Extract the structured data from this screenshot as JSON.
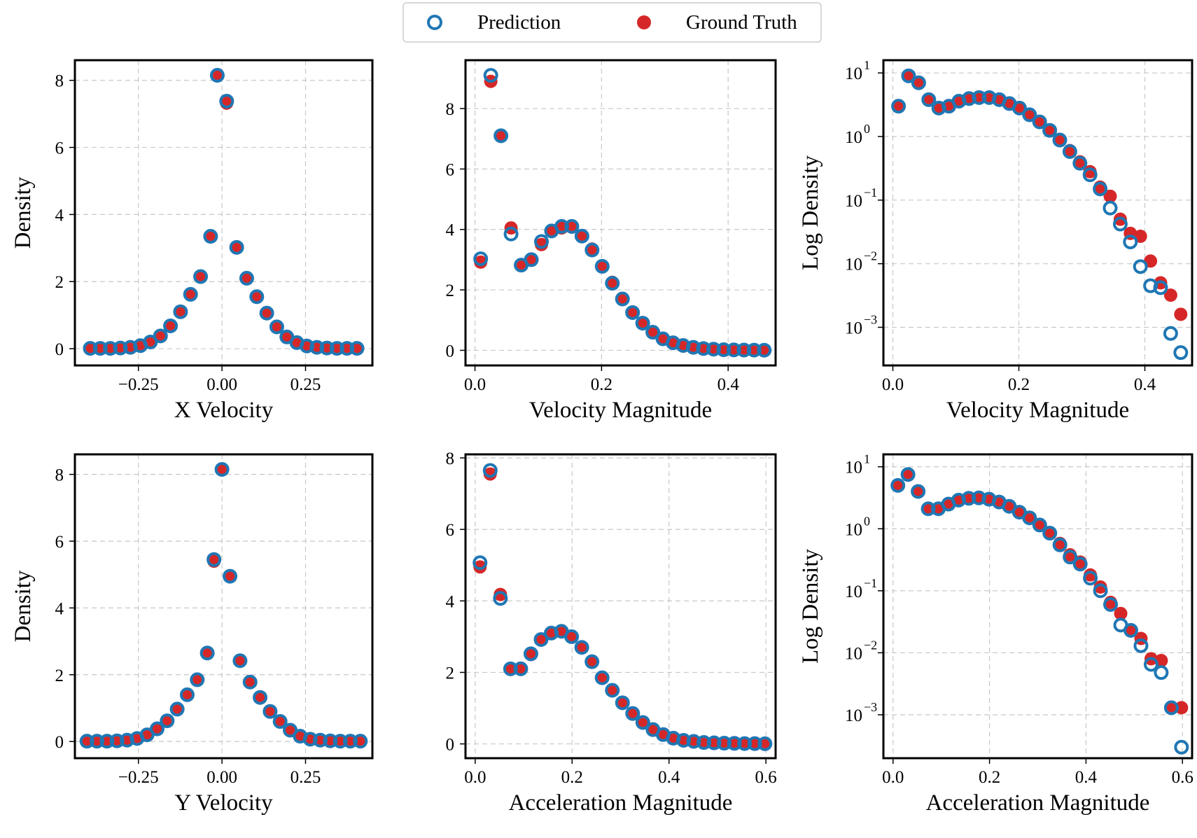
{
  "legend": {
    "prediction_label": "Prediction",
    "ground_truth_label": "Ground Truth"
  },
  "colors": {
    "prediction": "#1f77b4",
    "ground_truth": "#d62728",
    "grid": "#c8c8c8",
    "frame": "#000000"
  },
  "chart_data": [
    {
      "id": "x-velocity",
      "type": "scatter",
      "xlabel": "X Velocity",
      "ylabel": "Density",
      "yscale": "linear",
      "xlim": [
        -0.44,
        0.45
      ],
      "ylim": [
        -0.5,
        8.6
      ],
      "xticks": [
        -0.25,
        0.0,
        0.25
      ],
      "xtick_labels": [
        "−0.25",
        "0.00",
        "0.25"
      ],
      "yticks": [
        0,
        2,
        4,
        6,
        8
      ],
      "ytick_labels": [
        "0",
        "2",
        "4",
        "6",
        "8"
      ],
      "x": [
        -0.394,
        -0.364,
        -0.334,
        -0.304,
        -0.274,
        -0.244,
        -0.214,
        -0.184,
        -0.154,
        -0.124,
        -0.094,
        -0.064,
        -0.034,
        -0.014,
        0.014,
        0.044,
        0.074,
        0.104,
        0.134,
        0.164,
        0.194,
        0.224,
        0.254,
        0.284,
        0.314,
        0.344,
        0.374,
        0.404
      ],
      "series": [
        {
          "name": "Prediction",
          "values": [
            0.01,
            0.01,
            0.01,
            0.02,
            0.04,
            0.09,
            0.2,
            0.38,
            0.68,
            1.1,
            1.62,
            2.15,
            3.35,
            8.15,
            7.38,
            3.02,
            2.1,
            1.55,
            1.06,
            0.65,
            0.35,
            0.18,
            0.08,
            0.04,
            0.02,
            0.01,
            0.01,
            0.01
          ]
        },
        {
          "name": "Ground Truth",
          "values": [
            0.01,
            0.01,
            0.01,
            0.02,
            0.04,
            0.09,
            0.2,
            0.38,
            0.68,
            1.1,
            1.62,
            2.15,
            3.35,
            8.15,
            7.32,
            3.02,
            2.1,
            1.55,
            1.06,
            0.65,
            0.35,
            0.18,
            0.08,
            0.04,
            0.02,
            0.01,
            0.01,
            0.01
          ]
        }
      ]
    },
    {
      "id": "velocity-magnitude",
      "type": "scatter",
      "xlabel": "Velocity Magnitude",
      "ylabel": "",
      "yscale": "linear",
      "xlim": [
        -0.015,
        0.475
      ],
      "ylim": [
        -0.5,
        9.6
      ],
      "xticks": [
        0.0,
        0.2,
        0.4
      ],
      "xtick_labels": [
        "0.0",
        "0.2",
        "0.4"
      ],
      "yticks": [
        0,
        2,
        4,
        6,
        8
      ],
      "ytick_labels": [
        "0",
        "2",
        "4",
        "6",
        "8"
      ],
      "x": [
        0.009,
        0.025,
        0.041,
        0.057,
        0.073,
        0.089,
        0.105,
        0.121,
        0.137,
        0.153,
        0.169,
        0.185,
        0.201,
        0.217,
        0.233,
        0.249,
        0.265,
        0.281,
        0.297,
        0.313,
        0.329,
        0.345,
        0.361,
        0.377,
        0.393,
        0.409,
        0.425,
        0.441,
        0.457
      ],
      "series": [
        {
          "name": "Prediction",
          "values": [
            3.03,
            9.1,
            7.1,
            3.85,
            2.82,
            3.0,
            3.6,
            3.95,
            4.1,
            4.1,
            3.78,
            3.32,
            2.78,
            2.22,
            1.7,
            1.25,
            0.9,
            0.6,
            0.38,
            0.25,
            0.16,
            0.1,
            0.06,
            0.04,
            0.02,
            0.015,
            0.01,
            0.008,
            0.005
          ]
        },
        {
          "name": "Ground Truth",
          "values": [
            2.92,
            8.9,
            7.1,
            4.05,
            2.82,
            3.0,
            3.5,
            3.97,
            4.05,
            4.08,
            3.78,
            3.35,
            2.78,
            2.25,
            1.7,
            1.25,
            0.9,
            0.6,
            0.38,
            0.25,
            0.16,
            0.1,
            0.06,
            0.04,
            0.02,
            0.015,
            0.01,
            0.008,
            0.005
          ]
        }
      ]
    },
    {
      "id": "velocity-magnitude-log",
      "type": "scatter",
      "xlabel": "Velocity Magnitude",
      "ylabel": "Log Density",
      "yscale": "log",
      "xlim": [
        -0.015,
        0.475
      ],
      "ylim_log10": [
        -3.6,
        1.2
      ],
      "xticks": [
        0.0,
        0.2,
        0.4
      ],
      "xtick_labels": [
        "0.0",
        "0.2",
        "0.4"
      ],
      "ytick_exponents": [
        1,
        0,
        -1,
        -2,
        -3
      ],
      "ytick_base": "10",
      "x": [
        0.009,
        0.025,
        0.041,
        0.057,
        0.073,
        0.089,
        0.105,
        0.121,
        0.137,
        0.153,
        0.169,
        0.185,
        0.201,
        0.217,
        0.233,
        0.249,
        0.265,
        0.281,
        0.297,
        0.313,
        0.329,
        0.345,
        0.361,
        0.377,
        0.393,
        0.409,
        0.425,
        0.441,
        0.457
      ],
      "series": [
        {
          "name": "Prediction",
          "values": [
            3.0,
            9.0,
            7.0,
            3.8,
            2.8,
            3.0,
            3.6,
            3.95,
            4.1,
            4.1,
            3.8,
            3.3,
            2.8,
            2.2,
            1.7,
            1.25,
            0.88,
            0.58,
            0.38,
            0.25,
            0.15,
            0.075,
            0.042,
            0.022,
            0.009,
            0.0045,
            0.0042,
            0.0008,
            0.0004
          ]
        },
        {
          "name": "Ground Truth",
          "values": [
            3.0,
            9.0,
            7.0,
            3.8,
            2.8,
            3.0,
            3.6,
            3.95,
            4.1,
            4.1,
            3.8,
            3.3,
            2.8,
            2.2,
            1.7,
            1.25,
            0.9,
            0.6,
            0.4,
            0.28,
            0.16,
            0.115,
            0.05,
            0.03,
            0.027,
            0.011,
            0.005,
            0.0032,
            0.0016
          ]
        }
      ]
    },
    {
      "id": "y-velocity",
      "type": "scatter",
      "xlabel": "Y Velocity",
      "ylabel": "Density",
      "yscale": "linear",
      "xlim": [
        -0.44,
        0.45
      ],
      "ylim": [
        -0.5,
        8.6
      ],
      "xticks": [
        -0.25,
        0.0,
        0.25
      ],
      "xtick_labels": [
        "−0.25",
        "0.00",
        "0.25"
      ],
      "yticks": [
        0,
        2,
        4,
        6,
        8
      ],
      "ytick_labels": [
        "0",
        "2",
        "4",
        "6",
        "8"
      ],
      "x": [
        -0.404,
        -0.374,
        -0.344,
        -0.314,
        -0.284,
        -0.254,
        -0.224,
        -0.194,
        -0.164,
        -0.134,
        -0.104,
        -0.074,
        -0.044,
        -0.024,
        0.0,
        0.024,
        0.054,
        0.084,
        0.114,
        0.144,
        0.174,
        0.204,
        0.234,
        0.264,
        0.294,
        0.324,
        0.354,
        0.384,
        0.414
      ],
      "series": [
        {
          "name": "Prediction",
          "values": [
            0.01,
            0.01,
            0.01,
            0.02,
            0.04,
            0.09,
            0.2,
            0.38,
            0.62,
            0.97,
            1.4,
            1.85,
            2.65,
            5.45,
            8.15,
            4.95,
            2.42,
            1.78,
            1.32,
            0.9,
            0.6,
            0.34,
            0.16,
            0.07,
            0.04,
            0.02,
            0.01,
            0.01,
            0.01
          ]
        },
        {
          "name": "Ground Truth",
          "values": [
            0.01,
            0.01,
            0.01,
            0.02,
            0.04,
            0.09,
            0.2,
            0.38,
            0.62,
            0.97,
            1.4,
            1.85,
            2.65,
            5.4,
            8.15,
            4.95,
            2.42,
            1.78,
            1.32,
            0.9,
            0.6,
            0.34,
            0.16,
            0.07,
            0.04,
            0.02,
            0.01,
            0.01,
            0.01
          ]
        }
      ]
    },
    {
      "id": "acceleration-magnitude",
      "type": "scatter",
      "xlabel": "Acceleration Magnitude",
      "ylabel": "",
      "yscale": "linear",
      "xlim": [
        -0.02,
        0.62
      ],
      "ylim": [
        -0.4,
        8.1
      ],
      "xticks": [
        0.0,
        0.2,
        0.4,
        0.6
      ],
      "xtick_labels": [
        "0.0",
        "0.2",
        "0.4",
        "0.6"
      ],
      "yticks": [
        0,
        2,
        4,
        6,
        8
      ],
      "ytick_labels": [
        "0",
        "2",
        "4",
        "6",
        "8"
      ],
      "x": [
        0.01,
        0.031,
        0.052,
        0.073,
        0.094,
        0.115,
        0.136,
        0.157,
        0.178,
        0.199,
        0.22,
        0.241,
        0.262,
        0.283,
        0.304,
        0.325,
        0.346,
        0.367,
        0.388,
        0.409,
        0.43,
        0.451,
        0.472,
        0.493,
        0.514,
        0.535,
        0.556,
        0.577,
        0.598
      ],
      "series": [
        {
          "name": "Prediction",
          "values": [
            5.07,
            7.65,
            4.07,
            2.1,
            2.1,
            2.52,
            2.92,
            3.1,
            3.15,
            3.0,
            2.7,
            2.3,
            1.85,
            1.5,
            1.15,
            0.85,
            0.6,
            0.4,
            0.26,
            0.16,
            0.1,
            0.07,
            0.04,
            0.03,
            0.02,
            0.015,
            0.01,
            0.008,
            0.005
          ]
        },
        {
          "name": "Ground Truth",
          "values": [
            4.95,
            7.55,
            4.18,
            2.1,
            2.12,
            2.5,
            2.92,
            3.1,
            3.15,
            3.0,
            2.7,
            2.3,
            1.85,
            1.5,
            1.15,
            0.85,
            0.6,
            0.4,
            0.26,
            0.16,
            0.1,
            0.07,
            0.04,
            0.03,
            0.02,
            0.015,
            0.01,
            0.008,
            0.005
          ]
        }
      ]
    },
    {
      "id": "acceleration-magnitude-log",
      "type": "scatter",
      "xlabel": "Acceleration Magnitude",
      "ylabel": "Log Density",
      "yscale": "log",
      "xlim": [
        -0.02,
        0.62
      ],
      "ylim_log10": [
        -3.7,
        1.2
      ],
      "xticks": [
        0.0,
        0.2,
        0.4,
        0.6
      ],
      "xtick_labels": [
        "0.0",
        "0.2",
        "0.4",
        "0.6"
      ],
      "ytick_exponents": [
        1,
        0,
        -1,
        -2,
        -3
      ],
      "ytick_base": "10",
      "x": [
        0.01,
        0.031,
        0.052,
        0.073,
        0.094,
        0.115,
        0.136,
        0.157,
        0.178,
        0.199,
        0.22,
        0.241,
        0.262,
        0.283,
        0.304,
        0.325,
        0.346,
        0.367,
        0.388,
        0.409,
        0.43,
        0.451,
        0.472,
        0.493,
        0.514,
        0.535,
        0.556,
        0.577,
        0.598
      ],
      "series": [
        {
          "name": "Prediction",
          "values": [
            5.0,
            7.5,
            4.0,
            2.1,
            2.1,
            2.5,
            2.9,
            3.1,
            3.15,
            3.0,
            2.7,
            2.3,
            1.85,
            1.5,
            1.15,
            0.85,
            0.55,
            0.35,
            0.27,
            0.16,
            0.1,
            0.06,
            0.028,
            0.023,
            0.013,
            0.0065,
            0.0048,
            0.0013,
            0.0003
          ]
        },
        {
          "name": "Ground Truth",
          "values": [
            5.0,
            7.5,
            4.0,
            2.1,
            2.1,
            2.5,
            2.9,
            3.1,
            3.15,
            3.0,
            2.7,
            2.3,
            1.85,
            1.5,
            1.15,
            0.85,
            0.58,
            0.38,
            0.29,
            0.18,
            0.115,
            0.065,
            0.043,
            0.023,
            0.017,
            0.008,
            0.0075,
            0.0013,
            0.0013
          ]
        }
      ]
    }
  ]
}
